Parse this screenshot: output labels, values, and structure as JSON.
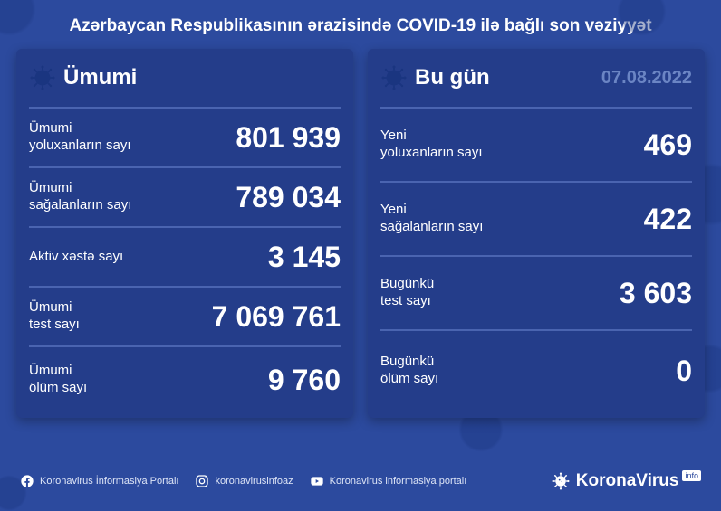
{
  "colors": {
    "background": "#2c4a9e",
    "panel_bg": "#243d8a",
    "divider": "#4a64b0",
    "text": "#ffffff",
    "date": "#6b85c4"
  },
  "title": "Azərbaycan Respublikasının ərazisində COVID-19 ilə bağlı son vəziyyət",
  "left": {
    "title": "Ümumi",
    "rows": [
      {
        "label": "Ümumi\nyoluxanların sayı",
        "value": "801 939"
      },
      {
        "label": "Ümumi\nsağalanların sayı",
        "value": "789 034"
      },
      {
        "label": "Aktiv xəstə sayı",
        "value": "3 145"
      },
      {
        "label": "Ümumi\ntest sayı",
        "value": "7 069 761"
      },
      {
        "label": "Ümumi\nölüm sayı",
        "value": "9 760"
      }
    ]
  },
  "right": {
    "title": "Bu gün",
    "date": "07.08.2022",
    "rows": [
      {
        "label": "Yeni\nyoluxanların sayı",
        "value": "469"
      },
      {
        "label": "Yeni\nsağalanların sayı",
        "value": "422"
      },
      {
        "label": "Bugünkü\ntest sayı",
        "value": "3 603"
      },
      {
        "label": "Bugünkü\nölüm sayı",
        "value": "0"
      }
    ]
  },
  "footer": {
    "facebook": "Koronavirus İnformasiya Portalı",
    "instagram": "koronavirusinfoaz",
    "youtube": "Koronavirus informasiya portalı",
    "brand_main": "KoronaVirus",
    "brand_suffix": "info"
  }
}
